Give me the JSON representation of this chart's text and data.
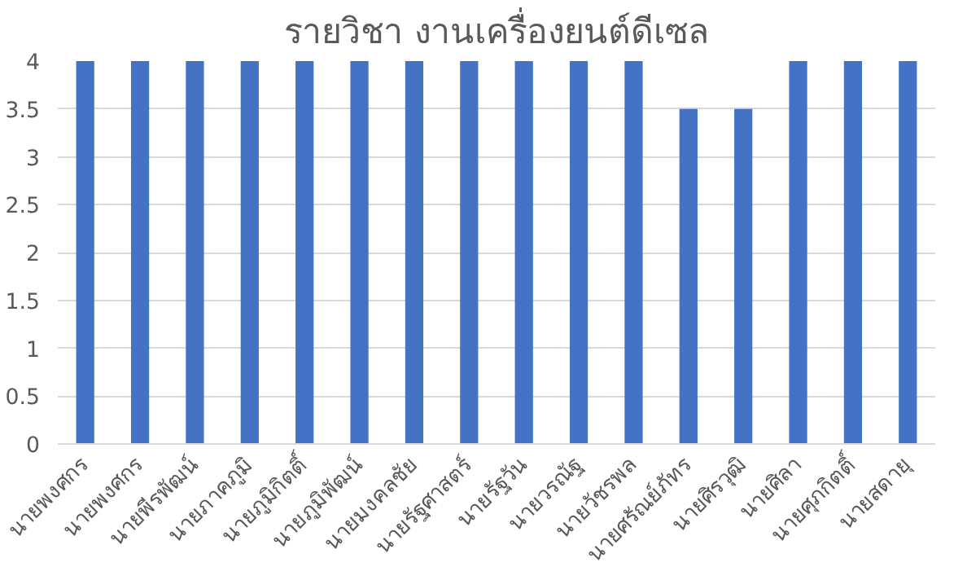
{
  "chart_data": {
    "type": "bar",
    "title": "รายวิชา งานเครื่องยนต์ดีเซล",
    "categories": [
      "นายพงศกร",
      "นายพงศกร",
      "นายพีรพัฒน์",
      "นายภาคภูมิ",
      "นายภูมิกิตติ์",
      "นายภูมิพัฒน์",
      "นายมงคลชัย",
      "นายรัฐศาสตร์",
      "นายรัฐวัน",
      "นายวรณัฐ",
      "นายวัชรพล",
      "นายศรัณย์ภัทร",
      "นายศิรวุฒิ",
      "นายศิลา",
      "นายศุภกิตติ์",
      "นายสดายุ"
    ],
    "values": [
      4,
      4,
      4,
      4,
      4,
      4,
      4,
      4,
      4,
      4,
      4,
      3.5,
      3.5,
      4,
      4,
      4
    ],
    "color": "#4472c4",
    "ylim": [
      0,
      4
    ],
    "yticks": [
      0,
      0.5,
      1,
      1.5,
      2,
      2.5,
      3,
      3.5,
      4
    ],
    "grid": "y"
  }
}
